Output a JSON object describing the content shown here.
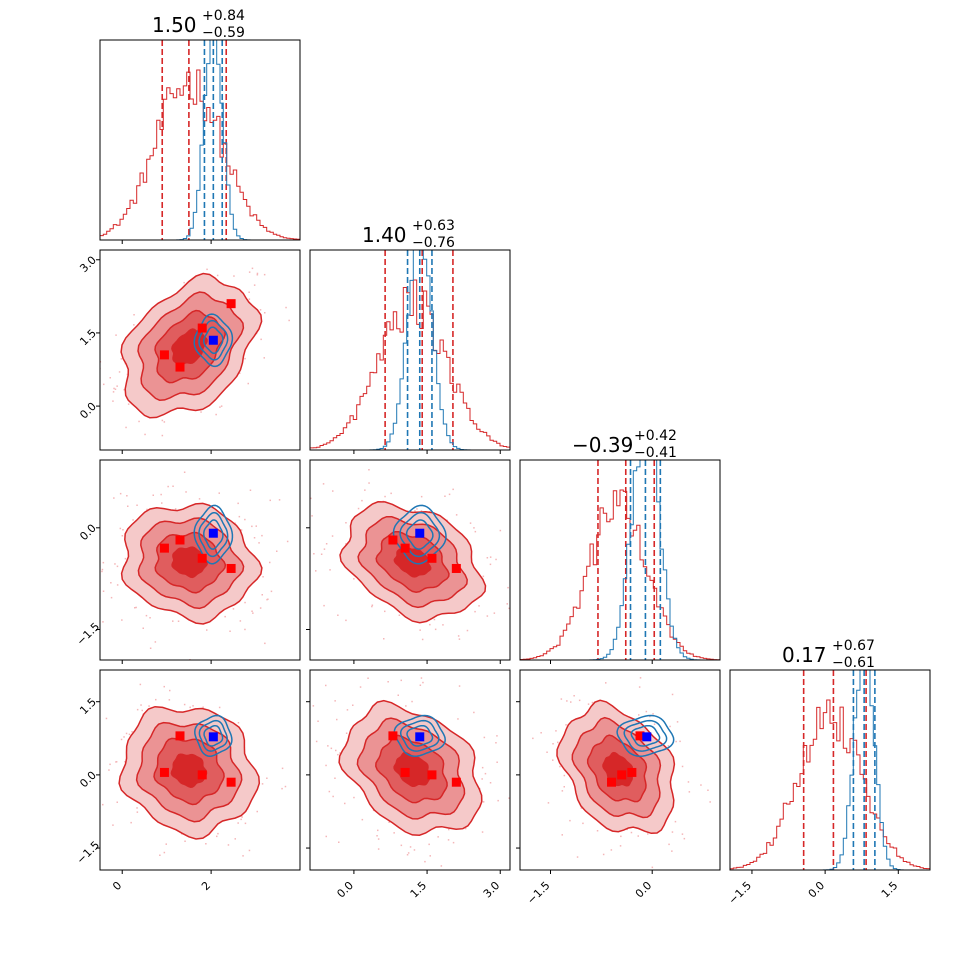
{
  "chart_data": {
    "type": "corner",
    "parameters": [
      {
        "title": {
          "median": "1.50",
          "plus": "+0.84",
          "minus": "−0.59"
        },
        "range": [
          -0.5,
          4.0
        ],
        "ticks": [
          0,
          2
        ],
        "tick_labels": [
          "0",
          "2"
        ]
      },
      {
        "title": {
          "median": "1.40",
          "plus": "+0.63",
          "minus": "−0.76"
        },
        "range": [
          -0.9,
          3.2
        ],
        "ticks": [
          0.0,
          1.5,
          3.0
        ],
        "tick_labels": [
          "0.0",
          "1.5",
          "3.0"
        ]
      },
      {
        "title": {
          "median": "−0.39",
          "plus": "+0.42",
          "minus": "−0.41"
        },
        "range": [
          -1.95,
          1.0
        ],
        "ticks": [
          -1.5,
          0.0
        ],
        "tick_labels": [
          "−1.5",
          "0.0"
        ]
      },
      {
        "title": {
          "median": "0.17",
          "plus": "+0.67",
          "minus": "−0.61"
        },
        "range": [
          -1.95,
          2.15
        ],
        "ticks": [
          -1.5,
          0.0,
          1.5
        ],
        "tick_labels": [
          "−1.5",
          "0.0",
          "1.5"
        ]
      }
    ],
    "series": [
      {
        "color": "#d62728",
        "mean": [
          1.5,
          1.2,
          -0.5,
          0.1
        ],
        "sigma": [
          0.75,
          0.7,
          0.42,
          0.65
        ],
        "quantiles": [
          [
            0.9,
            1.5,
            2.34
          ],
          [
            0.64,
            1.4,
            2.03
          ],
          [
            -0.8,
            -0.39,
            0.03
          ],
          [
            -0.44,
            0.17,
            0.84
          ]
        ]
      },
      {
        "color": "#1f77b4",
        "mean": [
          2.05,
          1.35,
          -0.1,
          0.8
        ],
        "sigma": [
          0.2,
          0.25,
          0.2,
          0.2
        ],
        "quantiles": [
          [
            1.85,
            2.05,
            2.25
          ],
          [
            1.1,
            1.35,
            1.6
          ],
          [
            -0.32,
            -0.1,
            0.12
          ],
          [
            0.58,
            0.8,
            1.02
          ]
        ]
      }
    ],
    "markers": [
      {
        "color": "#ff0000",
        "points": [
          [
            0.95,
            1.05,
            -0.3,
            0.05
          ],
          [
            1.3,
            0.8,
            -0.18,
            0.8
          ],
          [
            1.8,
            1.6,
            -0.45,
            0.0
          ],
          [
            2.45,
            2.1,
            -0.6,
            -0.15
          ]
        ]
      },
      {
        "color": "#0000ff",
        "points": [
          [
            2.05,
            1.35,
            -0.08,
            0.78
          ]
        ]
      }
    ],
    "contour_levels": [
      0.5,
      1.0,
      1.5,
      2.0
    ],
    "grid": false,
    "legend": "none"
  }
}
